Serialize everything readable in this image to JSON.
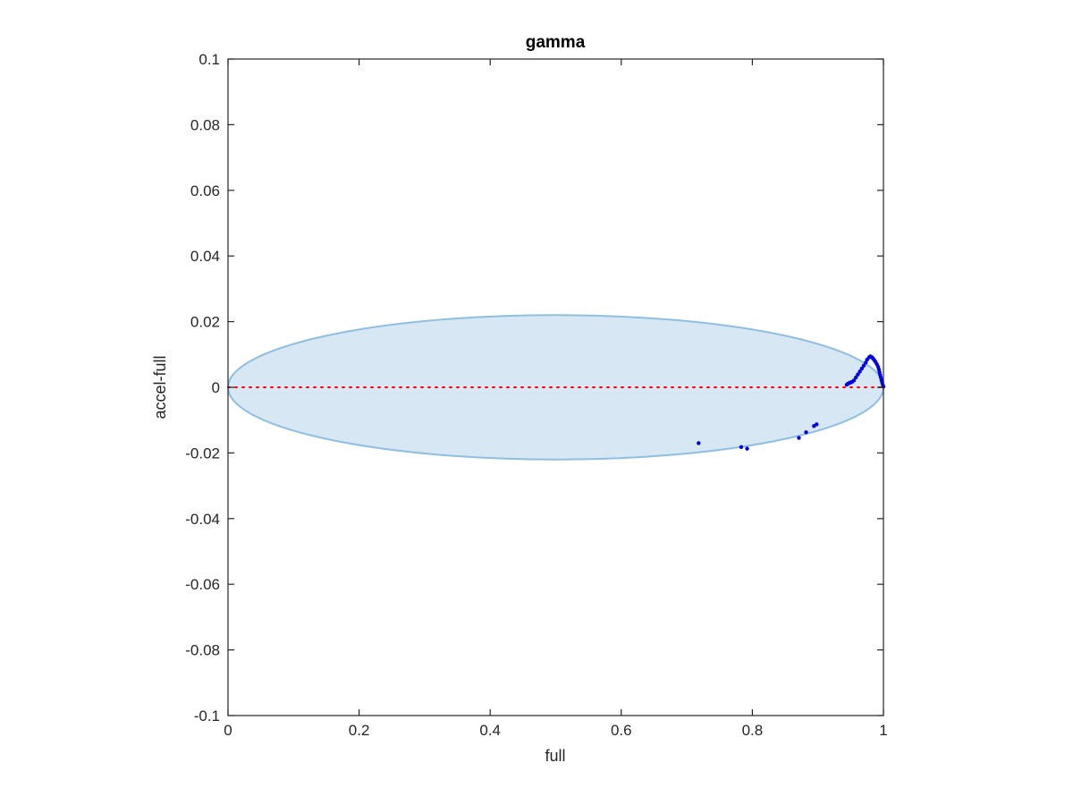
{
  "chart_data": {
    "type": "scatter",
    "title": "gamma",
    "xlabel": "full",
    "ylabel": "accel-full",
    "xlim": [
      0,
      1
    ],
    "ylim": [
      -0.1,
      0.1
    ],
    "xticks": [
      0,
      0.2,
      0.4,
      0.6,
      0.8,
      1
    ],
    "xtick_labels": [
      "0",
      "0.2",
      "0.4",
      "0.6",
      "0.8",
      "1"
    ],
    "yticks": [
      -0.1,
      -0.08,
      -0.06,
      -0.04,
      -0.02,
      0,
      0.02,
      0.04,
      0.06,
      0.08,
      0.1
    ],
    "ytick_labels": [
      "-0.1",
      "-0.08",
      "-0.06",
      "-0.04",
      "-0.02",
      "0",
      "0.02",
      "0.04",
      "0.06",
      "0.08",
      "0.1"
    ],
    "grid": false,
    "legend": null,
    "region": {
      "shape": "ellipse",
      "center": [
        0.5,
        0
      ],
      "x_half_width": 0.5,
      "y_half_height": 0.022,
      "fill_color": "#d7e8f4",
      "edge_color": "#8fbfe0"
    },
    "reference_line": {
      "y": 0,
      "x_range": [
        0,
        1
      ],
      "style": "dotted",
      "color": "#ff0000"
    },
    "series": [
      {
        "color": "#0000e6",
        "marker": "dot",
        "points": [
          [
            0.718,
            -0.017
          ],
          [
            0.783,
            -0.0182
          ],
          [
            0.792,
            -0.0187
          ],
          [
            0.871,
            -0.0154
          ],
          [
            0.882,
            -0.0137
          ],
          [
            0.894,
            -0.0118
          ],
          [
            0.898,
            -0.0113
          ],
          [
            0.944,
            0.0008
          ],
          [
            0.946,
            0.0011
          ],
          [
            0.948,
            0.0013
          ],
          [
            0.95,
            0.0015
          ],
          [
            0.952,
            0.0016
          ],
          [
            0.955,
            0.0021
          ],
          [
            0.958,
            0.003
          ],
          [
            0.961,
            0.0039
          ],
          [
            0.964,
            0.0048
          ],
          [
            0.967,
            0.0057
          ],
          [
            0.97,
            0.0066
          ],
          [
            0.973,
            0.0075
          ],
          [
            0.975,
            0.0084
          ],
          [
            0.978,
            0.0091
          ],
          [
            0.98,
            0.0094
          ],
          [
            0.982,
            0.0092
          ],
          [
            0.984,
            0.0088
          ],
          [
            0.986,
            0.0083
          ],
          [
            0.988,
            0.0077
          ],
          [
            0.99,
            0.007
          ],
          [
            0.992,
            0.0062
          ],
          [
            0.993,
            0.0054
          ],
          [
            0.994,
            0.0046
          ],
          [
            0.995,
            0.0038
          ],
          [
            0.996,
            0.003
          ],
          [
            0.997,
            0.0022
          ],
          [
            0.998,
            0.0015
          ],
          [
            0.999,
            0.0008
          ],
          [
            1.0,
            0.0002
          ]
        ]
      }
    ]
  }
}
